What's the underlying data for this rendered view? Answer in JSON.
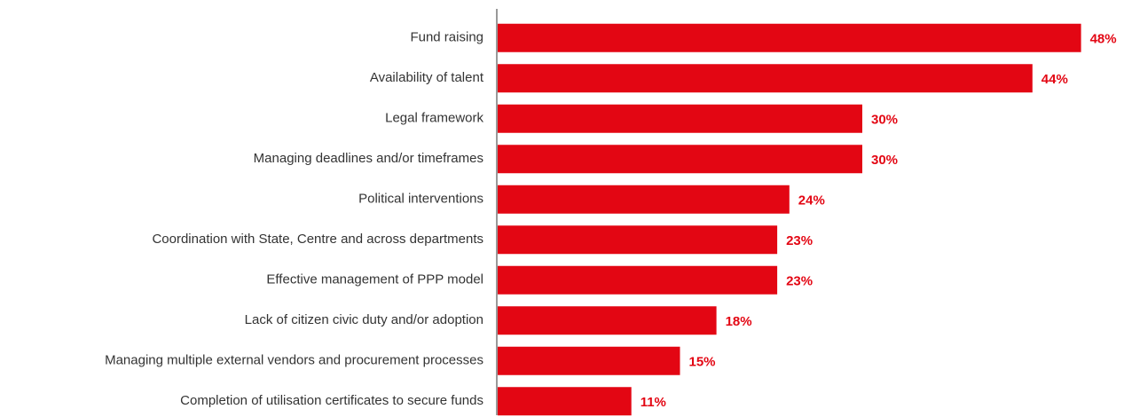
{
  "chart_data": {
    "type": "bar",
    "orientation": "horizontal",
    "color": "#e30613",
    "categories": [
      "Fund raising",
      "Availability of talent",
      "Legal framework",
      "Managing deadlines and/or timeframes",
      "Political interventions",
      "Coordination with State, Centre and across departments",
      "Effective management of PPP model",
      "Lack of citizen civic duty and/or adoption",
      "Managing multiple external vendors and procurement processes",
      "Completion of utilisation certificates to secure funds"
    ],
    "values": [
      48,
      44,
      30,
      30,
      24,
      23,
      23,
      18,
      15,
      11
    ],
    "value_labels": [
      "48%",
      "44%",
      "30%",
      "30%",
      "24%",
      "23%",
      "23%",
      "18%",
      "15%",
      "11%"
    ]
  }
}
